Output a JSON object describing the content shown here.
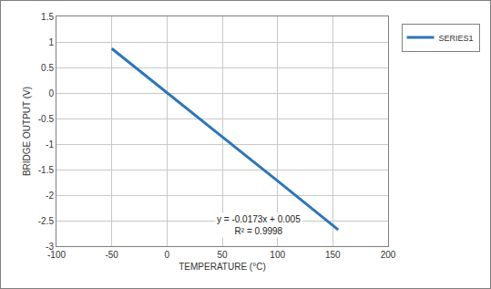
{
  "chart_data": {
    "type": "line",
    "x_label": "TEMPERATURE (°C)",
    "y_label": "BRIDGE OUTPUT (V)",
    "x": [
      -50,
      0,
      50,
      100,
      150,
      155
    ],
    "series": [
      {
        "name": "SERIES1",
        "color": "#2e75b6",
        "values": [
          0.87,
          0.0,
          -0.86,
          -1.72,
          -2.59,
          -2.68
        ]
      }
    ],
    "annotations": [
      "y = -0.0173x + 0.005",
      "R² = 0.9998"
    ],
    "xlim": [
      -100,
      200
    ],
    "xticks": [
      -100,
      -50,
      0,
      50,
      100,
      150,
      200
    ],
    "ylim": [
      -3,
      1.5
    ],
    "yticks": [
      -3,
      -2.5,
      -2,
      -1.5,
      -1,
      -0.5,
      0,
      0.5,
      1,
      1.5
    ],
    "grid": true,
    "legend": "right"
  }
}
